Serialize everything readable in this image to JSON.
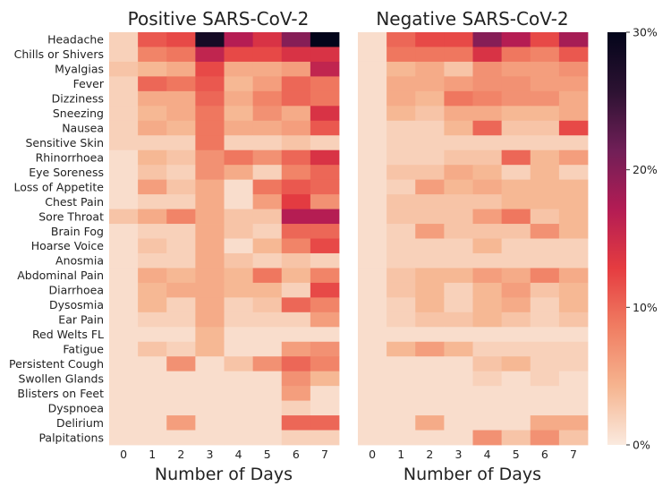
{
  "chart_data": {
    "type": "heatmap",
    "symptoms": [
      "Headache",
      "Chills or Shivers",
      "Myalgias",
      "Fever",
      "Dizziness",
      "Sneezing",
      "Nausea",
      "Sensitive Skin",
      "Rhinorrhoea",
      "Eye Soreness",
      "Loss of Appetite",
      "Chest Pain",
      "Sore Throat",
      "Brain Fog",
      "Hoarse Voice",
      "Anosmia",
      "Abdominal Pain",
      "Diarrhoea",
      "Dysosmia",
      "Ear Pain",
      "Red Welts FL",
      "Fatigue",
      "Persistent Cough",
      "Swollen Glands",
      "Blisters on Feet",
      "Dyspnoea",
      "Delirium",
      "Palpitations"
    ],
    "days": [
      "0",
      "1",
      "2",
      "3",
      "4",
      "5",
      "6",
      "7"
    ],
    "xlabel": "Number of Days",
    "value_range": [
      0,
      30
    ],
    "colorbar": {
      "ticks": [
        0,
        10,
        20,
        30
      ],
      "tick_labels": [
        "0%",
        "10%",
        "20%",
        "30%"
      ],
      "colors": [
        "#faeadf",
        "#f6b48f",
        "#f07d62",
        "#e53c40",
        "#b31c54",
        "#701f57",
        "#2c1232",
        "#03051a"
      ]
    },
    "panels": [
      {
        "title": "Positive SARS-CoV-2",
        "values": [
          [
            2,
            11,
            12,
            28,
            17,
            14,
            20,
            30
          ],
          [
            2,
            8,
            9,
            16,
            12,
            12,
            14,
            14
          ],
          [
            3,
            4,
            5,
            12,
            5,
            5,
            6,
            16
          ],
          [
            2,
            10,
            9,
            11,
            4,
            6,
            10,
            9
          ],
          [
            2,
            5,
            5,
            10,
            5,
            8,
            10,
            9
          ],
          [
            2,
            4,
            5,
            9,
            4,
            7,
            5,
            14
          ],
          [
            2,
            5,
            4,
            9,
            5,
            5,
            6,
            11
          ],
          [
            2,
            2,
            2,
            9,
            2,
            2,
            3,
            2
          ],
          [
            1,
            4,
            3,
            7,
            9,
            7,
            10,
            14
          ],
          [
            1,
            3,
            2,
            7,
            5,
            2,
            8,
            10
          ],
          [
            1,
            6,
            3,
            5,
            1,
            9,
            11,
            10
          ],
          [
            1,
            2,
            2,
            5,
            1,
            6,
            13,
            7
          ],
          [
            3,
            5,
            8,
            5,
            3,
            3,
            17,
            17
          ],
          [
            1,
            2,
            2,
            5,
            3,
            2,
            10,
            10
          ],
          [
            1,
            3,
            2,
            5,
            1,
            4,
            8,
            12
          ],
          [
            1,
            2,
            2,
            5,
            3,
            2,
            3,
            2
          ],
          [
            1,
            5,
            4,
            5,
            4,
            9,
            4,
            8
          ],
          [
            1,
            4,
            5,
            5,
            4,
            4,
            2,
            12
          ],
          [
            1,
            4,
            2,
            5,
            2,
            3,
            10,
            8
          ],
          [
            1,
            2,
            2,
            5,
            2,
            2,
            2,
            6
          ],
          [
            1,
            1,
            1,
            4,
            1,
            1,
            1,
            1
          ],
          [
            1,
            3,
            2,
            4,
            1,
            1,
            6,
            7
          ],
          [
            1,
            1,
            7,
            1,
            3,
            7,
            10,
            8
          ],
          [
            1,
            1,
            1,
            1,
            1,
            1,
            7,
            4
          ],
          [
            1,
            1,
            1,
            1,
            1,
            1,
            6,
            1
          ],
          [
            1,
            1,
            1,
            1,
            1,
            1,
            2,
            1
          ],
          [
            1,
            1,
            6,
            1,
            1,
            1,
            10,
            10
          ],
          [
            1,
            1,
            1,
            1,
            1,
            1,
            2,
            2
          ]
        ]
      },
      {
        "title": "Negative SARS-CoV-2",
        "values": [
          [
            1,
            10,
            12,
            12,
            20,
            17,
            12,
            18
          ],
          [
            1,
            9,
            9,
            9,
            14,
            9,
            8,
            11
          ],
          [
            1,
            4,
            5,
            3,
            7,
            6,
            6,
            7
          ],
          [
            1,
            5,
            5,
            6,
            7,
            7,
            6,
            6
          ],
          [
            1,
            5,
            4,
            9,
            8,
            7,
            7,
            5
          ],
          [
            1,
            4,
            3,
            5,
            5,
            4,
            4,
            5
          ],
          [
            1,
            2,
            2,
            4,
            10,
            3,
            3,
            12
          ],
          [
            1,
            2,
            2,
            2,
            2,
            2,
            2,
            2
          ],
          [
            1,
            2,
            2,
            3,
            3,
            10,
            4,
            6
          ],
          [
            1,
            3,
            3,
            5,
            4,
            2,
            4,
            2
          ],
          [
            1,
            2,
            6,
            4,
            5,
            4,
            4,
            4
          ],
          [
            1,
            3,
            3,
            3,
            3,
            4,
            4,
            4
          ],
          [
            1,
            3,
            3,
            3,
            6,
            9,
            3,
            4
          ],
          [
            1,
            2,
            6,
            3,
            3,
            3,
            7,
            4
          ],
          [
            1,
            2,
            2,
            2,
            4,
            2,
            2,
            2
          ],
          [
            1,
            2,
            2,
            2,
            2,
            2,
            2,
            2
          ],
          [
            1,
            3,
            4,
            4,
            6,
            5,
            8,
            5
          ],
          [
            1,
            3,
            4,
            2,
            4,
            6,
            3,
            4
          ],
          [
            1,
            2,
            4,
            2,
            4,
            5,
            2,
            4
          ],
          [
            1,
            2,
            3,
            3,
            4,
            3,
            2,
            3
          ],
          [
            1,
            1,
            1,
            1,
            1,
            1,
            1,
            1
          ],
          [
            1,
            4,
            6,
            4,
            2,
            2,
            2,
            2
          ],
          [
            1,
            1,
            1,
            1,
            3,
            4,
            2,
            2
          ],
          [
            1,
            1,
            1,
            1,
            2,
            1,
            2,
            1
          ],
          [
            1,
            1,
            1,
            1,
            1,
            1,
            1,
            1
          ],
          [
            1,
            1,
            1,
            1,
            1,
            1,
            1,
            1
          ],
          [
            1,
            1,
            5,
            1,
            1,
            1,
            5,
            5
          ],
          [
            1,
            1,
            1,
            1,
            7,
            3,
            7,
            3
          ]
        ]
      }
    ]
  }
}
